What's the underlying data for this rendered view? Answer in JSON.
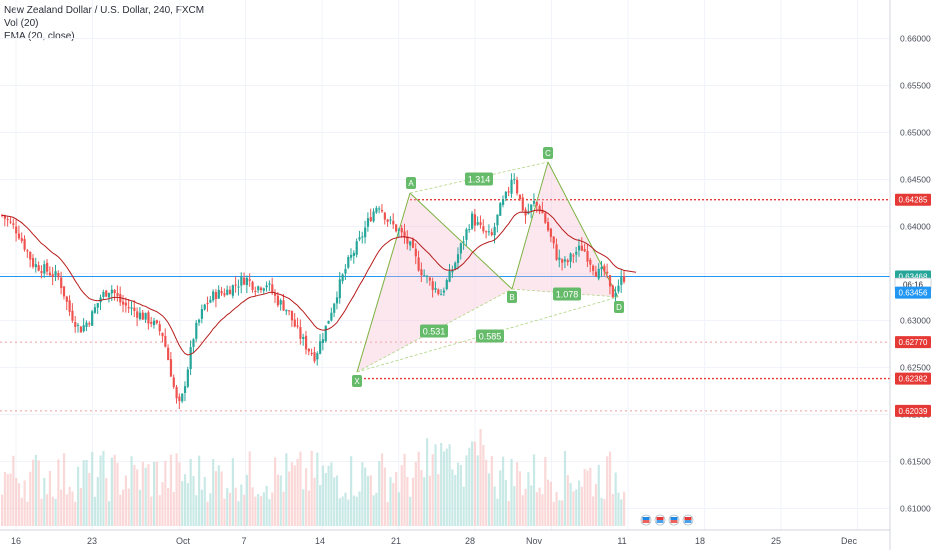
{
  "legend": {
    "symbol": "New Zealand Dollar / U.S. Dollar, 240, FXCM",
    "vol": "Vol (20)",
    "ema": "EMA (20, close)"
  },
  "colors": {
    "up": "#26a69a",
    "down": "#ef5350",
    "ema": "#b71c1c",
    "pattern_line": "#7cb342",
    "pattern_fill": "#f8bbd0",
    "label_bg": "#66bb6a",
    "level": "#e53935",
    "current": "#2196f3"
  },
  "chart_data": {
    "type": "candlestick",
    "ylim": [
      0.6061,
      0.6667
    ],
    "y_ticks": [
      "0.66000",
      "0.65500",
      "0.65000",
      "0.64500",
      "0.64000",
      "0.63500",
      "0.63000",
      "0.62500",
      "0.62000",
      "0.61500",
      "0.61000"
    ],
    "x_ticks": [
      "16",
      "23",
      "Oct",
      "7",
      "14",
      "21",
      "28",
      "Nov",
      "11",
      "18",
      "25",
      "Dec"
    ],
    "price_badges": [
      {
        "label": "0.64285",
        "value": 0.64285,
        "kind": "level"
      },
      {
        "label": "0.63468",
        "value": 0.63468,
        "kind": "current"
      },
      {
        "label": "06:16",
        "value": 0.63385,
        "kind": "countdown"
      },
      {
        "label": "0.63456",
        "value": 0.63296,
        "kind": "last"
      },
      {
        "label": "0.62770",
        "value": 0.6277,
        "kind": "level"
      },
      {
        "label": "0.62382",
        "value": 0.62382,
        "kind": "level"
      },
      {
        "label": "0.62039",
        "value": 0.62039,
        "kind": "level"
      }
    ],
    "levels": [
      {
        "value": 0.64285,
        "style": "dotted",
        "color": "#e53935",
        "from_day": 24.7
      },
      {
        "value": 0.62382,
        "style": "dotted",
        "color": "#e53935",
        "from_day": 17.0
      },
      {
        "value": 0.6277,
        "style": "faint",
        "color": "#ef9a9a",
        "from_day": 0
      },
      {
        "value": 0.62039,
        "style": "faint",
        "color": "#ef9a9a",
        "from_day": 0
      }
    ],
    "current_price": 0.63468,
    "harmonic_pattern": {
      "points": [
        {
          "label": "X",
          "day": 17.2,
          "price": 0.6244
        },
        {
          "label": "A",
          "day": 21.4,
          "price": 0.6434
        },
        {
          "label": "B",
          "day": 28.8,
          "price": 0.6338
        },
        {
          "label": "C",
          "day": 34.3,
          "price": 0.6468
        },
        {
          "label": "D",
          "day": 39.7,
          "price": 0.632
        }
      ],
      "ratios": [
        {
          "label": "1.314",
          "from": "A",
          "to": "C"
        },
        {
          "label": "0.531",
          "from": "X",
          "to": "B"
        },
        {
          "label": "0.585",
          "from": "X",
          "to": "D"
        },
        {
          "label": "1.078",
          "from": "B",
          "to": "D"
        }
      ]
    }
  }
}
